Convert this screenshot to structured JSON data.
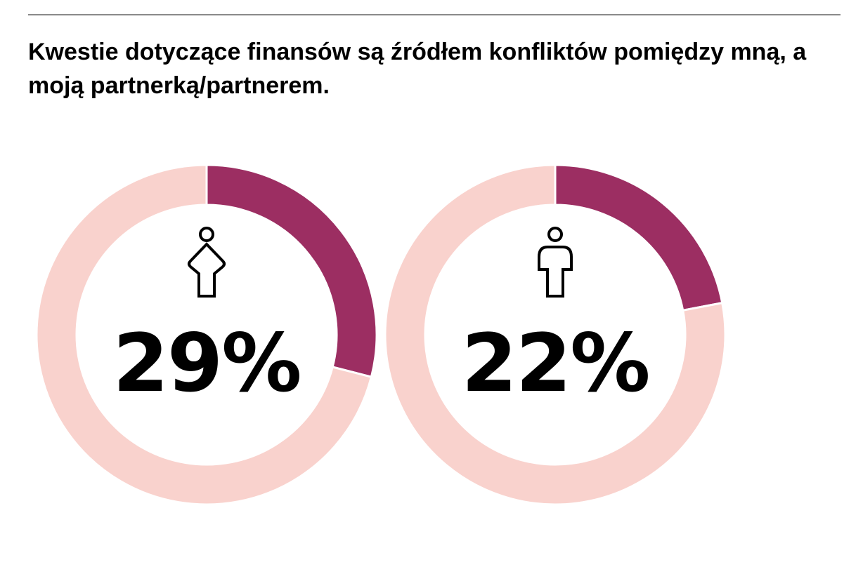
{
  "title": "Kwestie dotyczące finansów są źródłem konfliktów pomiędzy mną, a moją partnerką/partnerem.",
  "colors": {
    "highlight": "#9c2e62",
    "remainder": "#f9d2cd",
    "text": "#000000",
    "rule": "#8a8a8a"
  },
  "chart_data": [
    {
      "type": "pie",
      "group_icon": "woman-icon",
      "value_label": "29%",
      "values": [
        29,
        71
      ]
    },
    {
      "type": "pie",
      "group_icon": "man-icon",
      "value_label": "22%",
      "values": [
        22,
        78
      ]
    }
  ]
}
